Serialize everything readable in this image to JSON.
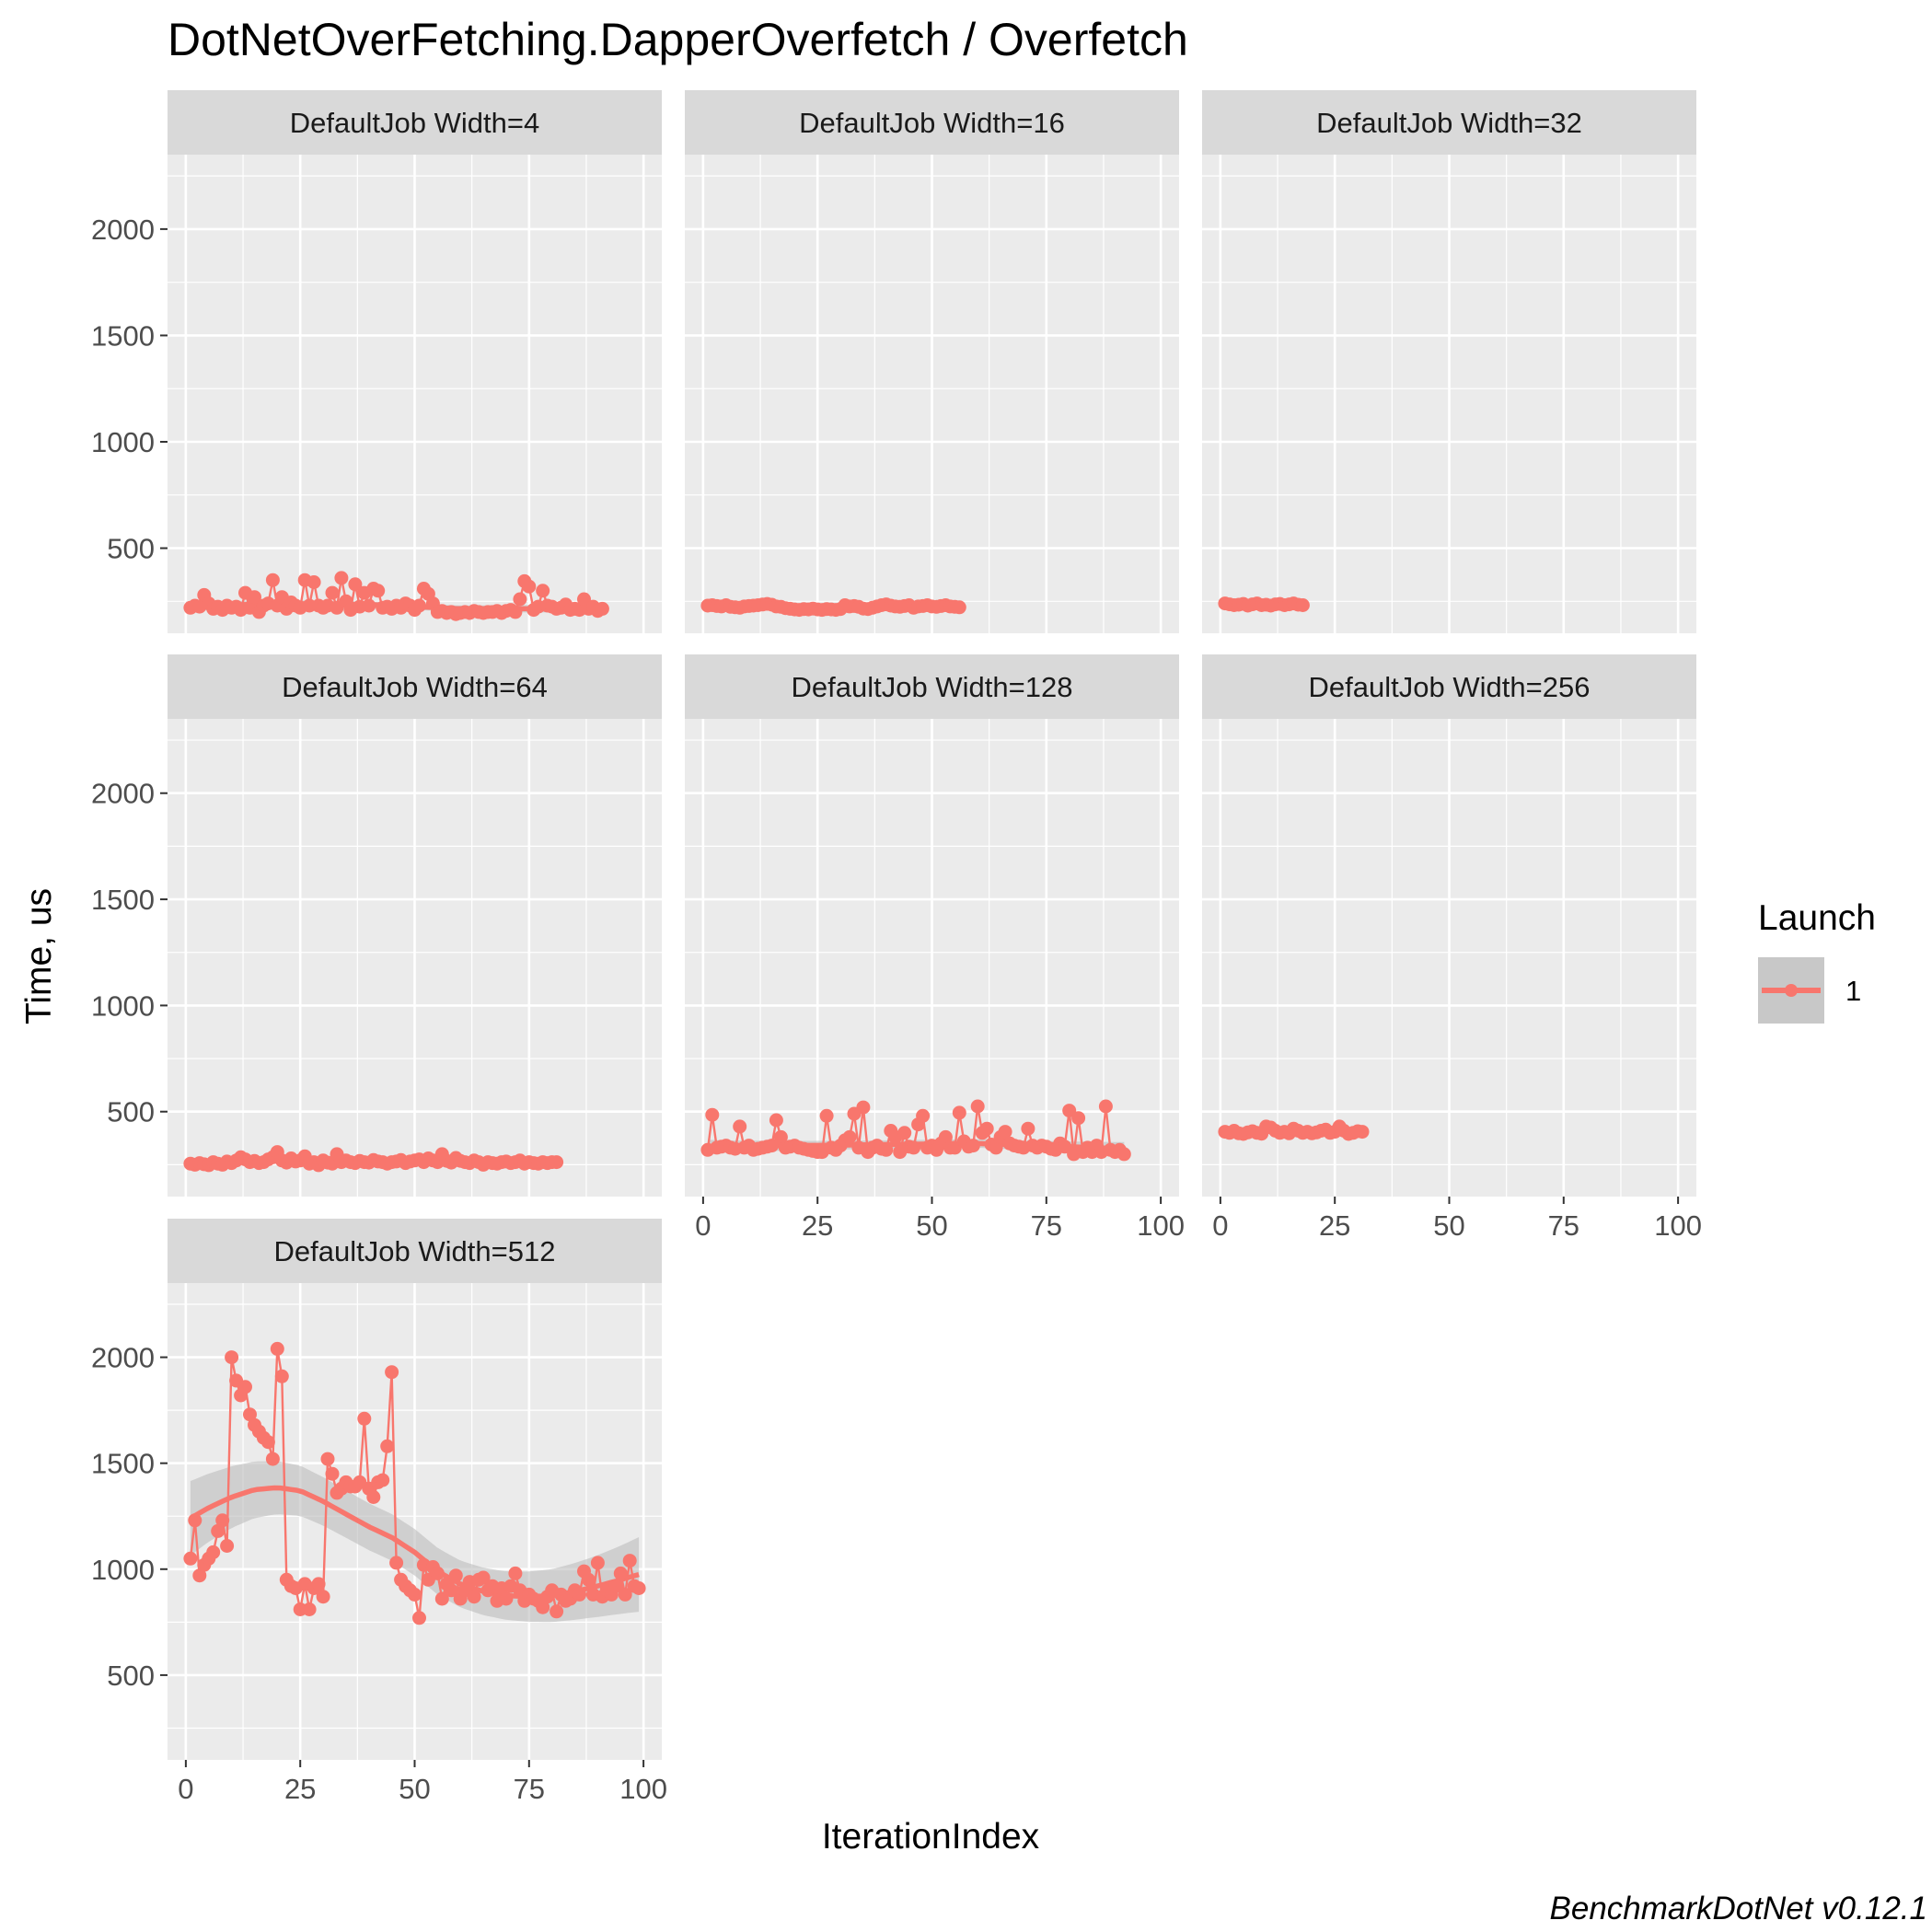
{
  "chart_data": {
    "type": "line",
    "title": "DotNetOverFetching.DapperOverfetch / Overfetch",
    "xlabel": "IterationIndex",
    "ylabel": "Time, us",
    "caption": "BenchmarkDotNet v0.12.1",
    "xlim": [
      -4,
      104
    ],
    "ylim": [
      100,
      2350
    ],
    "x_ticks": [
      0,
      25,
      50,
      75,
      100
    ],
    "y_ticks": [
      500,
      1000,
      1500,
      2000
    ],
    "x_tick_labels": [
      "0",
      "25",
      "50",
      "75",
      "100"
    ],
    "y_tick_labels": [
      "500",
      "1000",
      "1500",
      "2000"
    ],
    "grid": true,
    "legend": {
      "title": "Launch",
      "entries": [
        "1"
      ],
      "position": "right"
    },
    "colors": {
      "series": "#f8766d",
      "panel_bg": "#ebebeb",
      "strip_bg": "#d9d9d9",
      "ribbon": "#bdbdbd",
      "grid": "#ffffff"
    },
    "panels": [
      {
        "label": "DefaultJob Width=4",
        "x": [
          1,
          2,
          3,
          4,
          5,
          6,
          7,
          8,
          9,
          10,
          11,
          12,
          13,
          14,
          15,
          16,
          17,
          18,
          19,
          20,
          21,
          22,
          23,
          24,
          25,
          26,
          27,
          28,
          29,
          30,
          31,
          32,
          33,
          34,
          35,
          36,
          37,
          38,
          39,
          40,
          41,
          42,
          43,
          44,
          45,
          46,
          47,
          48,
          49,
          50,
          51,
          52,
          53,
          54,
          55,
          56,
          57,
          58,
          59,
          60,
          61,
          62,
          63,
          64,
          65,
          66,
          67,
          68,
          69,
          70,
          71,
          72,
          73,
          74,
          75,
          76,
          77,
          78,
          79,
          80,
          81,
          82,
          83,
          84,
          85,
          86,
          87,
          88,
          89,
          90,
          91
        ],
        "y": [
          220,
          230,
          225,
          280,
          240,
          215,
          225,
          210,
          230,
          220,
          225,
          210,
          290,
          220,
          270,
          200,
          230,
          240,
          350,
          230,
          270,
          215,
          245,
          230,
          220,
          350,
          230,
          340,
          230,
          220,
          230,
          290,
          220,
          360,
          250,
          210,
          330,
          225,
          290,
          230,
          310,
          300,
          220,
          225,
          215,
          230,
          220,
          240,
          230,
          210,
          230,
          310,
          285,
          240,
          200,
          205,
          195,
          200,
          190,
          195,
          200,
          195,
          205,
          200,
          195,
          200,
          200,
          205,
          195,
          205,
          210,
          200,
          260,
          345,
          320,
          210,
          225,
          300,
          230,
          225,
          215,
          220,
          235,
          210,
          215,
          210,
          260,
          215,
          225,
          205,
          215
        ],
        "smooth": [
          [
            0,
            225
          ],
          [
            20,
            240
          ],
          [
            40,
            235
          ],
          [
            60,
            215
          ],
          [
            75,
            215
          ],
          [
            91,
            220
          ]
        ],
        "ribbon": 15
      },
      {
        "label": "DefaultJob Width=16",
        "x": [
          1,
          2,
          3,
          4,
          5,
          6,
          7,
          8,
          9,
          10,
          11,
          12,
          13,
          14,
          15,
          16,
          17,
          18,
          19,
          20,
          21,
          22,
          23,
          24,
          25,
          26,
          27,
          28,
          29,
          30,
          31,
          32,
          33,
          34,
          35,
          36,
          37,
          38,
          39,
          40,
          41,
          42,
          43,
          44,
          45,
          46,
          47,
          48,
          49,
          50,
          51,
          52,
          53,
          54,
          55,
          56
        ],
        "y": [
          230,
          232,
          228,
          226,
          232,
          224,
          222,
          220,
          226,
          228,
          230,
          232,
          235,
          238,
          234,
          226,
          224,
          218,
          215,
          212,
          210,
          214,
          212,
          216,
          212,
          210,
          214,
          212,
          210,
          214,
          232,
          226,
          228,
          224,
          216,
          214,
          220,
          226,
          232,
          236,
          230,
          226,
          224,
          228,
          232,
          220,
          226,
          228,
          232,
          226,
          224,
          228,
          232,
          226,
          224,
          222
        ],
        "smooth": [
          [
            1,
            228
          ],
          [
            15,
            230
          ],
          [
            25,
            212
          ],
          [
            35,
            215
          ],
          [
            45,
            228
          ],
          [
            56,
            226
          ]
        ],
        "ribbon": 8
      },
      {
        "label": "DefaultJob Width=32",
        "x": [
          1,
          2,
          3,
          4,
          5,
          6,
          7,
          8,
          9,
          10,
          11,
          12,
          13,
          14,
          15,
          16,
          17,
          18
        ],
        "y": [
          240,
          236,
          232,
          234,
          238,
          230,
          236,
          240,
          232,
          234,
          230,
          236,
          238,
          232,
          236,
          240,
          234,
          232
        ],
        "smooth": [
          [
            1,
            236
          ],
          [
            18,
            234
          ]
        ],
        "ribbon": 6
      },
      {
        "label": "DefaultJob Width=64",
        "x": [
          1,
          2,
          3,
          4,
          5,
          6,
          7,
          8,
          9,
          10,
          11,
          12,
          13,
          14,
          15,
          16,
          17,
          18,
          19,
          20,
          21,
          22,
          23,
          24,
          25,
          26,
          27,
          28,
          29,
          30,
          31,
          32,
          33,
          34,
          35,
          36,
          37,
          38,
          39,
          40,
          41,
          42,
          43,
          44,
          45,
          46,
          47,
          48,
          49,
          50,
          51,
          52,
          53,
          54,
          55,
          56,
          57,
          58,
          59,
          60,
          61,
          62,
          63,
          64,
          65,
          66,
          67,
          68,
          69,
          70,
          71,
          72,
          73,
          74,
          75,
          76,
          77,
          78,
          79,
          80,
          81
        ],
        "y": [
          255,
          250,
          258,
          252,
          248,
          262,
          255,
          250,
          265,
          258,
          270,
          285,
          275,
          262,
          268,
          258,
          262,
          275,
          285,
          310,
          270,
          260,
          280,
          265,
          270,
          290,
          255,
          262,
          248,
          270,
          260,
          255,
          300,
          262,
          270,
          262,
          258,
          268,
          262,
          260,
          272,
          265,
          262,
          255,
          262,
          265,
          272,
          258,
          265,
          270,
          275,
          262,
          280,
          270,
          262,
          300,
          268,
          260,
          282,
          268,
          262,
          258,
          270,
          262,
          250,
          262,
          258,
          255,
          262,
          265,
          258,
          262,
          270,
          255,
          262,
          258,
          255,
          262,
          258,
          262,
          262
        ],
        "smooth": [
          [
            1,
            258
          ],
          [
            20,
            268
          ],
          [
            40,
            265
          ],
          [
            60,
            266
          ],
          [
            81,
            260
          ]
        ],
        "ribbon": 8
      },
      {
        "label": "DefaultJob Width=128",
        "x": [
          1,
          2,
          3,
          4,
          5,
          6,
          7,
          8,
          9,
          10,
          11,
          12,
          13,
          14,
          15,
          16,
          17,
          18,
          19,
          20,
          21,
          22,
          23,
          24,
          25,
          26,
          27,
          28,
          29,
          30,
          31,
          32,
          33,
          34,
          35,
          36,
          37,
          38,
          39,
          40,
          41,
          42,
          43,
          44,
          45,
          46,
          47,
          48,
          49,
          50,
          51,
          52,
          53,
          54,
          55,
          56,
          57,
          58,
          59,
          60,
          61,
          62,
          63,
          64,
          65,
          66,
          67,
          68,
          69,
          70,
          71,
          72,
          73,
          74,
          75,
          76,
          77,
          78,
          79,
          80,
          81,
          82,
          83,
          84,
          85,
          86,
          87,
          88,
          89,
          90,
          91,
          92
        ],
        "y": [
          320,
          485,
          330,
          335,
          340,
          330,
          325,
          430,
          330,
          340,
          320,
          325,
          330,
          335,
          340,
          460,
          380,
          330,
          335,
          340,
          330,
          325,
          320,
          315,
          310,
          310,
          480,
          330,
          320,
          340,
          365,
          380,
          490,
          330,
          520,
          310,
          330,
          340,
          325,
          320,
          410,
          380,
          310,
          400,
          335,
          330,
          440,
          480,
          330,
          340,
          320,
          350,
          380,
          330,
          330,
          495,
          360,
          335,
          340,
          525,
          400,
          420,
          345,
          330,
          380,
          405,
          350,
          340,
          335,
          330,
          420,
          340,
          330,
          340,
          335,
          325,
          320,
          350,
          335,
          505,
          300,
          470,
          310,
          330,
          310,
          340,
          310,
          525,
          320,
          310,
          320,
          300
        ],
        "smooth": [
          [
            1,
            335
          ],
          [
            20,
            340
          ],
          [
            40,
            345
          ],
          [
            60,
            350
          ],
          [
            80,
            335
          ],
          [
            92,
            325
          ]
        ],
        "ribbon": 20
      },
      {
        "label": "DefaultJob Width=256",
        "x": [
          1,
          2,
          3,
          4,
          5,
          6,
          7,
          8,
          9,
          10,
          11,
          12,
          13,
          14,
          15,
          16,
          17,
          18,
          19,
          20,
          21,
          22,
          23,
          24,
          25,
          26,
          27,
          28,
          29,
          30,
          31
        ],
        "y": [
          405,
          400,
          410,
          398,
          395,
          402,
          408,
          400,
          396,
          430,
          425,
          410,
          400,
          405,
          398,
          420,
          410,
          400,
          405,
          398,
          402,
          410,
          415,
          400,
          405,
          430,
          410,
          395,
          400,
          408,
          405
        ],
        "smooth": [
          [
            1,
            403
          ],
          [
            15,
            408
          ],
          [
            31,
            405
          ]
        ],
        "ribbon": 10
      },
      {
        "label": "DefaultJob Width=512",
        "x": [
          1,
          2,
          3,
          4,
          5,
          6,
          7,
          8,
          9,
          10,
          11,
          12,
          13,
          14,
          15,
          16,
          17,
          18,
          19,
          20,
          21,
          22,
          23,
          24,
          25,
          26,
          27,
          28,
          29,
          30,
          31,
          32,
          33,
          34,
          35,
          36,
          37,
          38,
          39,
          40,
          41,
          42,
          43,
          44,
          45,
          46,
          47,
          48,
          49,
          50,
          51,
          52,
          53,
          54,
          55,
          56,
          57,
          58,
          59,
          60,
          61,
          62,
          63,
          64,
          65,
          66,
          67,
          68,
          69,
          70,
          71,
          72,
          73,
          74,
          75,
          76,
          77,
          78,
          79,
          80,
          81,
          82,
          83,
          84,
          85,
          86,
          87,
          88,
          89,
          90,
          91,
          92,
          93,
          94,
          95,
          96,
          97,
          98,
          99
        ],
        "y": [
          1050,
          1230,
          970,
          1020,
          1050,
          1080,
          1180,
          1230,
          1110,
          2000,
          1890,
          1820,
          1860,
          1730,
          1680,
          1650,
          1620,
          1600,
          1520,
          2040,
          1910,
          950,
          920,
          910,
          810,
          930,
          810,
          910,
          930,
          870,
          1520,
          1450,
          1360,
          1380,
          1410,
          1390,
          1390,
          1410,
          1710,
          1380,
          1340,
          1410,
          1420,
          1580,
          1930,
          1030,
          950,
          920,
          900,
          880,
          770,
          1020,
          950,
          1010,
          980,
          860,
          930,
          900,
          970,
          860,
          900,
          940,
          870,
          950,
          960,
          900,
          920,
          850,
          910,
          860,
          920,
          980,
          900,
          850,
          880,
          860,
          850,
          820,
          870,
          900,
          800,
          880,
          850,
          860,
          900,
          880,
          990,
          950,
          880,
          1030,
          870,
          900,
          880,
          920,
          980,
          880,
          1040,
          920,
          910
        ],
        "smooth": [
          [
            1,
            1240
          ],
          [
            5,
            1290
          ],
          [
            10,
            1340
          ],
          [
            15,
            1375
          ],
          [
            20,
            1385
          ],
          [
            25,
            1370
          ],
          [
            30,
            1320
          ],
          [
            35,
            1260
          ],
          [
            40,
            1200
          ],
          [
            45,
            1150
          ],
          [
            50,
            1080
          ],
          [
            55,
            990
          ],
          [
            60,
            930
          ],
          [
            65,
            895
          ],
          [
            70,
            875
          ],
          [
            75,
            870
          ],
          [
            80,
            875
          ],
          [
            85,
            895
          ],
          [
            90,
            920
          ],
          [
            95,
            950
          ],
          [
            99,
            975
          ]
        ],
        "ribbon": 110
      }
    ]
  }
}
